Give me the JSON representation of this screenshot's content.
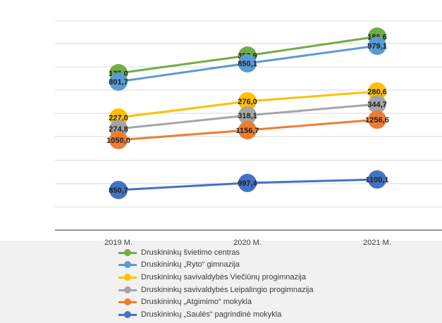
{
  "chart_data": {
    "type": "line",
    "categories": [
      "2019 M.",
      "2020 M.",
      "2021 M."
    ],
    "grid": true,
    "legend_position": "bottom",
    "series": [
      {
        "name": "Druskininkų švietimo centras",
        "values": [
          135.0,
          352.9,
          186.6
        ],
        "labels": [
          "135,0",
          "352,9",
          "186,6"
        ],
        "color": "#70ad47"
      },
      {
        "name": "Druskininkų „Ryto“ gimnazija",
        "values": [
          801.7,
          850.1,
          979.1
        ],
        "labels": [
          "801,7",
          "850,1",
          "979,1"
        ],
        "color": "#5b9bd5"
      },
      {
        "name": "Druskininkų savivaldybės Viečiūnų progimnazija",
        "values": [
          227.0,
          276.0,
          280.6
        ],
        "labels": [
          "227,0",
          "276,0",
          "280,6"
        ],
        "color": "#ffc000"
      },
      {
        "name": "Druskininkų savivaldybės Leipalingio progimnazija",
        "values": [
          274.8,
          318.1,
          344.7
        ],
        "labels": [
          "274,8",
          "318,1",
          "344,7"
        ],
        "color": "#a5a5a5"
      },
      {
        "name": "Druskininkų „Atgimimo“ mokykla",
        "values": [
          1050.0,
          1156.7,
          1256.6
        ],
        "labels": [
          "1050,0",
          "1156,7",
          "1256,6"
        ],
        "color": "#ed7d31"
      },
      {
        "name": "Druskininkų „Saulės“ pagrindinė mokykla",
        "values": [
          850.7,
          997.4,
          1100.1
        ],
        "labels": [
          "850,7",
          "997,4",
          "1100,1"
        ],
        "color": "#4472c4"
      }
    ]
  }
}
